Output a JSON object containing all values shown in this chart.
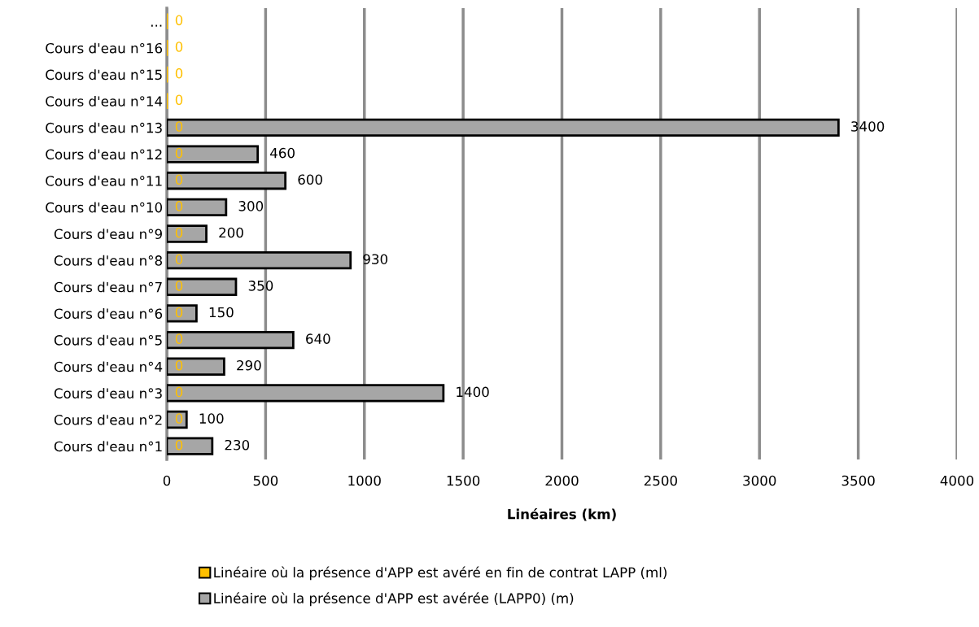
{
  "chart_data": {
    "type": "bar",
    "orientation": "horizontal",
    "xlabel": "Linéaires (km)",
    "categories": [
      "...",
      "Cours d'eau n°16",
      "Cours d'eau n°15",
      "Cours d'eau n°14",
      "Cours d'eau n°13",
      "Cours d'eau n°12",
      "Cours d'eau n°11",
      "Cours d'eau n°10",
      "Cours d'eau n°9",
      "Cours d'eau n°8",
      "Cours d'eau n°7",
      "Cours d'eau n°6",
      "Cours d'eau n°5",
      "Cours d'eau n°4",
      "Cours d'eau n°3",
      "Cours d'eau n°2",
      "Cours d'eau n°1"
    ],
    "series": [
      {
        "name": "Linéaire où la présence d'APP est avéré en fin de contrat LAPP (ml)",
        "color": "#ffc000",
        "values": [
          0,
          0,
          0,
          0,
          0,
          0,
          0,
          0,
          0,
          0,
          0,
          0,
          0,
          0,
          0,
          0,
          0
        ]
      },
      {
        "name": "Linéaire où la présence d'APP est avérée (LAPP0) (m)",
        "color": "#a6a6a6",
        "values": [
          null,
          null,
          null,
          null,
          3400,
          460,
          600,
          300,
          200,
          930,
          350,
          150,
          640,
          290,
          1400,
          100,
          230
        ]
      }
    ],
    "xlim": [
      0,
      4000
    ],
    "xticks": [
      0,
      500,
      1000,
      1500,
      2000,
      2500,
      3000,
      3500,
      4000
    ],
    "grid": "x",
    "legend": "bottom",
    "data_labels": true
  }
}
